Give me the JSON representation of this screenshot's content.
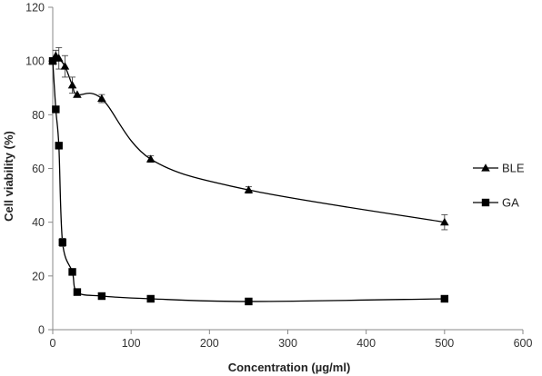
{
  "chart_data": {
    "type": "line",
    "title": "",
    "xlabel": "Concentration  (µg/ml)",
    "ylabel": "Cell viability  (%)",
    "xlim": [
      0,
      600
    ],
    "ylim": [
      0,
      120
    ],
    "xticks": [
      0,
      100,
      200,
      300,
      400,
      500,
      600
    ],
    "yticks": [
      0,
      20,
      40,
      60,
      80,
      100,
      120
    ],
    "grid": false,
    "legend_position": "right",
    "series": [
      {
        "name": "BLE",
        "marker": "triangle",
        "color": "#000000",
        "x": [
          0,
          3.9,
          7.8,
          15.6,
          25,
          31.25,
          62.5,
          125,
          250,
          500
        ],
        "y": [
          100,
          102,
          101,
          98,
          91,
          87.5,
          86,
          63.5,
          52,
          40
        ],
        "err": [
          0,
          2,
          4,
          4,
          3,
          0,
          1.5,
          1.2,
          1.2,
          2.8
        ]
      },
      {
        "name": "GA",
        "marker": "square",
        "color": "#000000",
        "x": [
          0,
          3.9,
          7.8,
          12.5,
          25,
          31.25,
          62.5,
          125,
          250,
          500
        ],
        "y": [
          100,
          82,
          68.5,
          32.5,
          21.5,
          14,
          12.5,
          11.5,
          10.5,
          11.5
        ],
        "err": [
          0,
          0,
          0,
          1.5,
          1,
          0,
          0,
          0,
          0,
          0
        ]
      }
    ]
  }
}
